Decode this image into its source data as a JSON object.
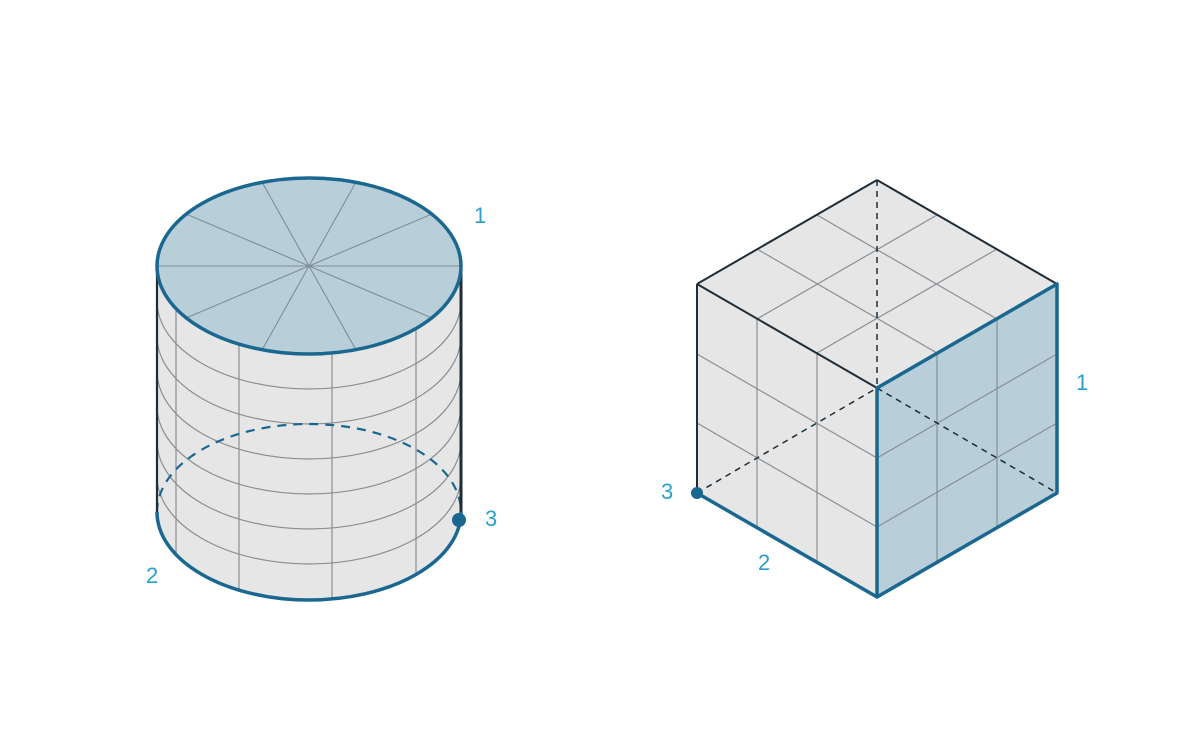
{
  "colors": {
    "background": "#ffffff",
    "accent_blue": "#1a6790",
    "label_blue": "#2a9fc9",
    "face_gray": "#e6e6e6",
    "face_blue": "#b8ced8",
    "outline_dark": "#1f2d38",
    "grid_gray": "#8a8f94"
  },
  "cylinder": {
    "label_1": "1",
    "label_2": "2",
    "label_3": "3"
  },
  "cube": {
    "label_1": "1",
    "label_2": "2",
    "label_3": "3"
  }
}
